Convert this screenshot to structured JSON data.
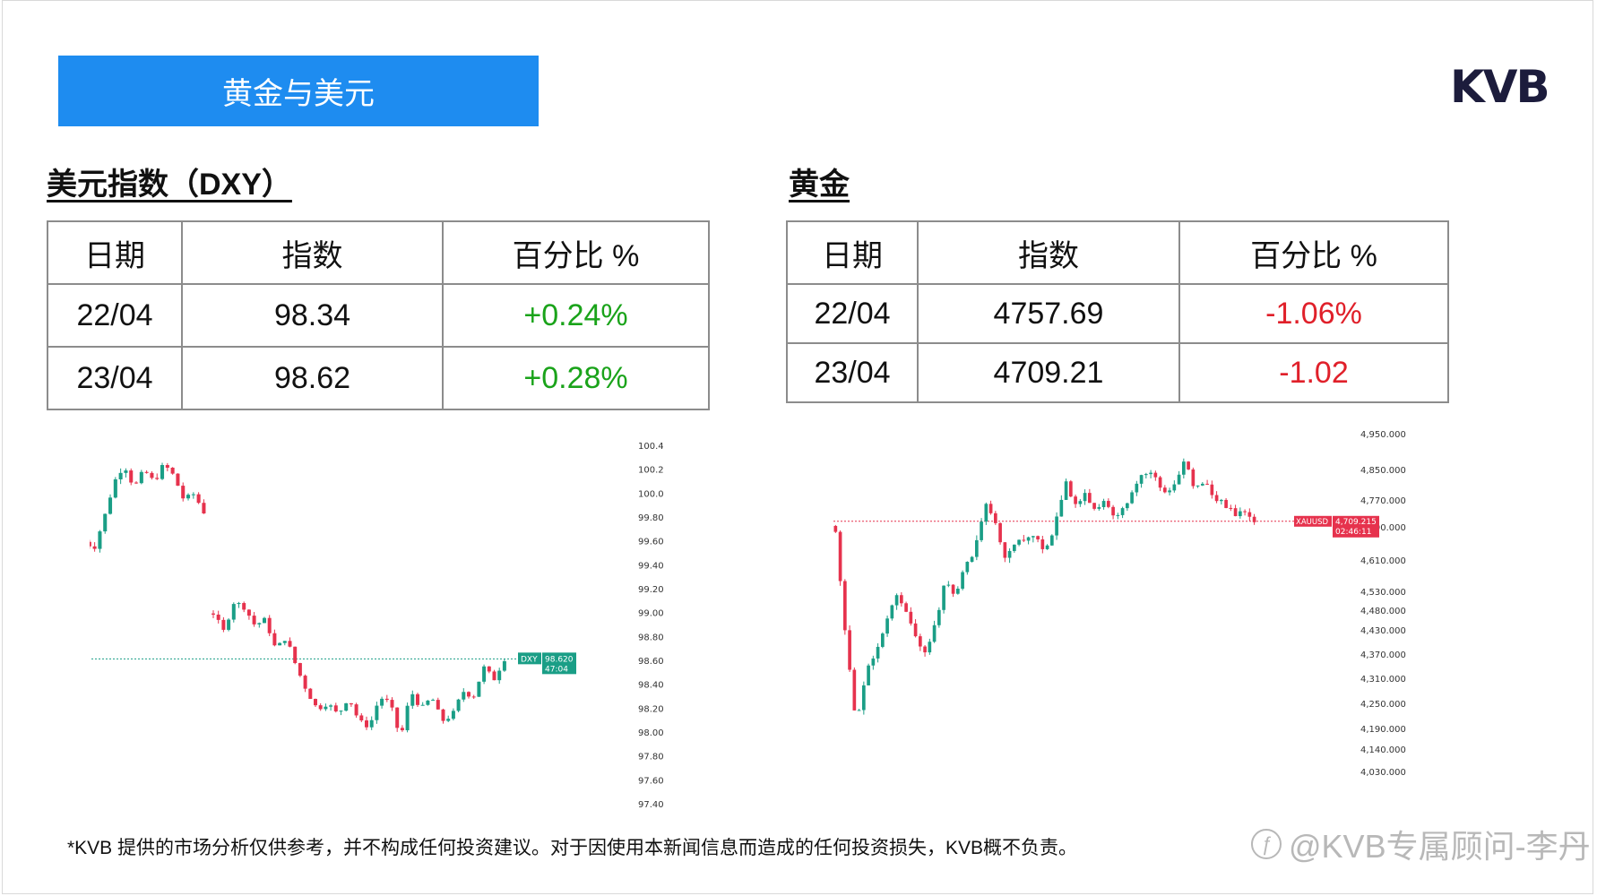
{
  "banner": {
    "title": "黄金与美元"
  },
  "logo": {
    "text": "KVB"
  },
  "dxy": {
    "section_title": "美元指数（DXY）",
    "headers": [
      "日期",
      "指数",
      "百分比 %"
    ],
    "rows": [
      {
        "date": "22/04",
        "value": "98.34",
        "pct": "+0.24%"
      },
      {
        "date": "23/04",
        "value": "98.62",
        "pct": "+0.28%"
      }
    ]
  },
  "gold": {
    "section_title": "黄金",
    "headers": [
      "日期",
      "指数",
      "百分比 %"
    ],
    "rows": [
      {
        "date": "22/04",
        "value": "4757.69",
        "pct": "-1.06%"
      },
      {
        "date": "23/04",
        "value": "4709.21",
        "pct": "-1.02"
      }
    ]
  },
  "colors": {
    "up": "#1a9e86",
    "down": "#e6324d",
    "pos_text": "#1aa31a",
    "neg_text": "#e0202a",
    "banner": "#1e8cf0"
  },
  "chart_data": [
    {
      "type": "candlestick",
      "symbol_label": "DXY",
      "price_label": "98.620",
      "time_label": "47:04",
      "last_price": 98.62,
      "y_ticks": [
        "100.400",
        "100.200",
        "100.000",
        "99.800",
        "99.600",
        "99.400",
        "99.200",
        "99.000",
        "98.800",
        "98.600",
        "98.400",
        "98.200",
        "98.000",
        "97.800",
        "97.600",
        "97.400"
      ],
      "ylim": [
        97.4,
        100.4
      ],
      "segments": [
        {
          "from": 99.6,
          "path": [
            99.6,
            99.55,
            99.8,
            100.1,
            100.25,
            100.05,
            100.2,
            100.1,
            100.25,
            100.15,
            99.95,
            100.0,
            99.85
          ]
        },
        {
          "from": 99.0,
          "path": [
            99.0,
            98.85,
            99.1,
            99.05,
            98.9,
            98.95,
            98.7,
            98.8,
            98.55,
            98.35,
            98.2,
            98.25,
            98.15,
            98.3,
            98.1,
            98.05,
            98.3,
            98.25,
            97.95,
            98.35,
            98.2,
            98.3,
            98.1,
            98.15,
            98.35,
            98.3,
            98.55,
            98.45,
            98.62
          ]
        }
      ]
    },
    {
      "type": "candlestick",
      "symbol_label": "XAUUSD",
      "price_label": "4,709.215",
      "time_label": "02:46:11",
      "last_price": 4709.215,
      "y_ticks": [
        "4,950.000",
        "4,850.000",
        "4,770.000",
        "4,690.000",
        "4,610.000",
        "4,530.000",
        "4,480.000",
        "4,430.000",
        "4,370.000",
        "4,310.000",
        "4,250.000",
        "4,190.000",
        "4,140.000",
        "4,030.000"
      ],
      "ylim": [
        4030,
        4950
      ],
      "path": [
        4700,
        4680,
        4400,
        4200,
        4330,
        4380,
        4450,
        4520,
        4480,
        4410,
        4380,
        4450,
        4560,
        4520,
        4600,
        4640,
        4760,
        4700,
        4620,
        4660,
        4650,
        4680,
        4630,
        4700,
        4820,
        4760,
        4790,
        4740,
        4780,
        4720,
        4760,
        4800,
        4850,
        4830,
        4790,
        4810,
        4880,
        4800,
        4820,
        4780,
        4760,
        4730,
        4740,
        4709
      ]
    }
  ],
  "disclaimer": "*KVB 提供的市场分析仅供参考，并不构成任何投资建议。对于因使用本新闻信息而造成的任何投资损失，KVB概不负责。",
  "watermark": {
    "icon": "ƒ",
    "text": "@KVB专属顾问-李丹"
  }
}
